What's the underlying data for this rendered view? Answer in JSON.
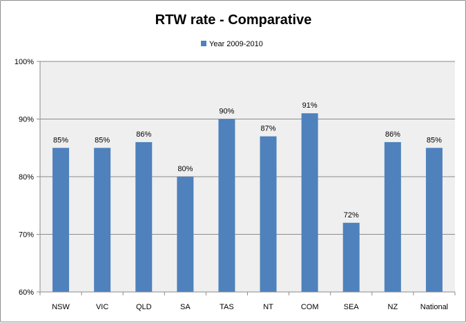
{
  "chart_data": {
    "type": "bar",
    "title": "RTW rate - Comparative",
    "xlabel": "",
    "ylabel": "",
    "categories": [
      "NSW",
      "VIC",
      "QLD",
      "SA",
      "TAS",
      "NT",
      "COM",
      "SEA",
      "NZ",
      "National"
    ],
    "series": [
      {
        "name": "Year 2009-2010",
        "values": [
          85,
          85,
          86,
          80,
          90,
          87,
          91,
          72,
          86,
          85
        ],
        "data_labels": [
          "85%",
          "85%",
          "86%",
          "80%",
          "90%",
          "87%",
          "91%",
          "72%",
          "86%",
          "85%"
        ],
        "color": "#4F81BD"
      }
    ],
    "ylim": [
      60,
      100
    ],
    "yticks": [
      60,
      70,
      80,
      90,
      100
    ],
    "ytick_labels": [
      "60%",
      "70%",
      "80%",
      "90%",
      "100%"
    ],
    "grid": true,
    "legend_position": "top",
    "plot_background": "#efefef"
  }
}
